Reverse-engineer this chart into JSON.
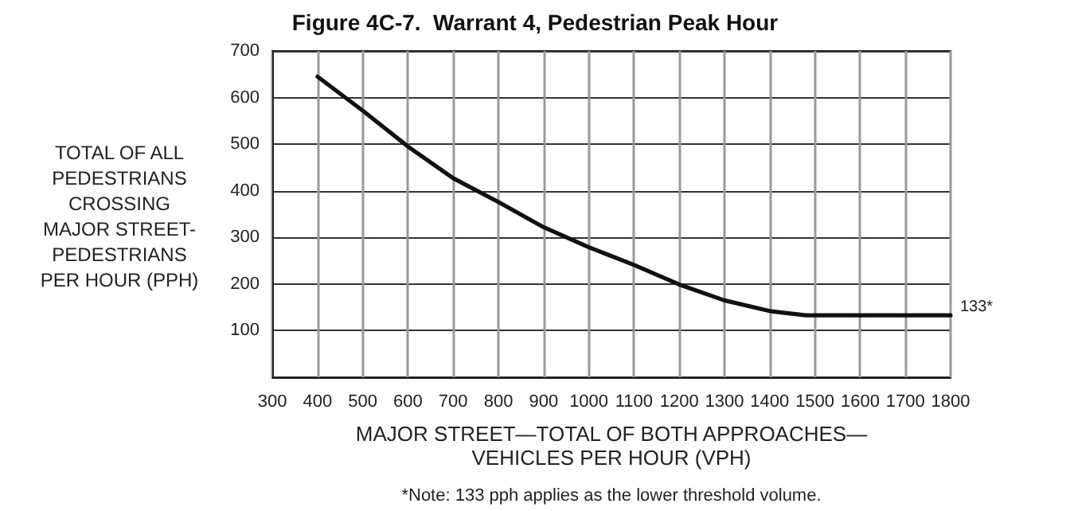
{
  "chart_data": {
    "type": "line",
    "title": "Figure 4C-7.  Warrant 4, Pedestrian Peak Hour",
    "xlabel": "MAJOR STREET—TOTAL OF BOTH APPROACHES—\nVEHICLES PER HOUR (VPH)",
    "ylabel": "TOTAL OF ALL\nPEDESTRIANS\nCROSSING\nMAJOR STREET-\nPEDESTRIANS\nPER HOUR (PPH)",
    "x": [
      400,
      500,
      600,
      700,
      800,
      900,
      1000,
      1100,
      1200,
      1300,
      1400,
      1480,
      1800
    ],
    "values": [
      645,
      572,
      495,
      427,
      376,
      322,
      279,
      241,
      199,
      165,
      142,
      133,
      133
    ],
    "color": "#111111",
    "xlim": [
      300,
      1800
    ],
    "xticks": [
      300,
      400,
      500,
      600,
      700,
      800,
      900,
      1000,
      1100,
      1200,
      1300,
      1400,
      1500,
      1600,
      1700,
      1800
    ],
    "ylim": [
      0,
      700
    ],
    "yticks": [
      100,
      200,
      300,
      400,
      500,
      600,
      700
    ],
    "grid": true,
    "marker": "none",
    "line_style": "solid",
    "annotations": [
      {
        "text": "133*",
        "x": 1800,
        "y": 133
      },
      "*Note: 133 pph applies as the lower threshold volume."
    ]
  }
}
